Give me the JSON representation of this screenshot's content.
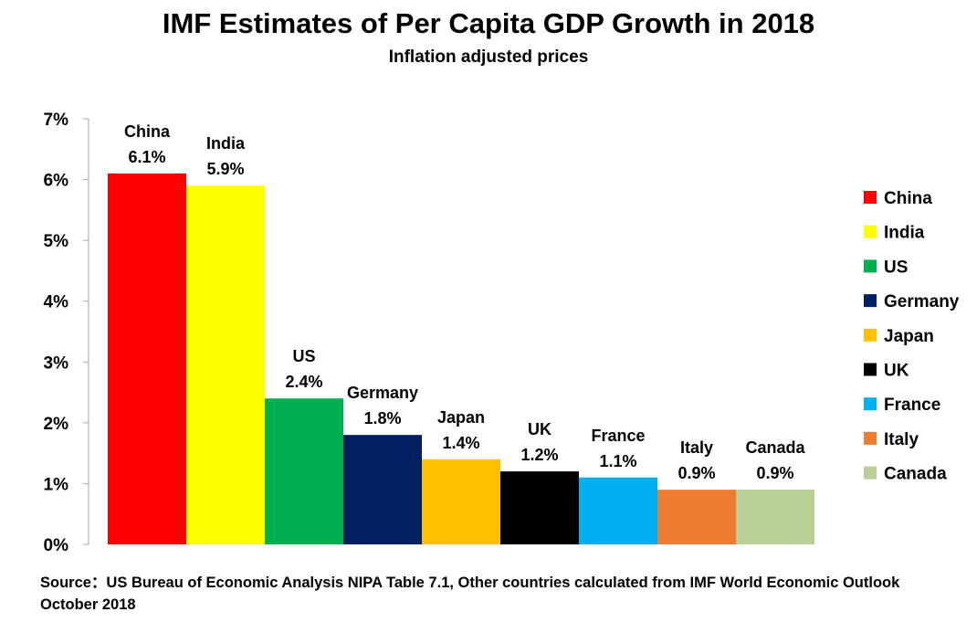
{
  "chart_data": {
    "type": "bar",
    "title": "IMF Estimates of Per Capita GDP Growth in 2018",
    "subtitle": "Inflation adjusted prices",
    "categories": [
      "China",
      "India",
      "US",
      "Germany",
      "Japan",
      "UK",
      "France",
      "Italy",
      "Canada"
    ],
    "values": [
      6.1,
      5.9,
      2.4,
      1.8,
      1.4,
      1.2,
      1.1,
      0.9,
      0.9
    ],
    "value_labels": [
      "6.1%",
      "5.9%",
      "2.4%",
      "1.8%",
      "1.4%",
      "1.2%",
      "1.1%",
      "0.9%",
      "0.9%"
    ],
    "colors": [
      "#ff0000",
      "#ffff00",
      "#00b050",
      "#002060",
      "#ffc000",
      "#000000",
      "#00b0f0",
      "#ed7d31",
      "#b8cf96"
    ],
    "ylim": [
      0,
      7
    ],
    "yticks": [
      "0%",
      "1%",
      "2%",
      "3%",
      "4%",
      "5%",
      "6%",
      "7%"
    ],
    "legend_position": "right",
    "grid": false
  },
  "source_note": "Source：US Bureau of Economic Analysis NIPA Table 7.1, Other countries calculated from IMF World Economic Outlook October 2018"
}
